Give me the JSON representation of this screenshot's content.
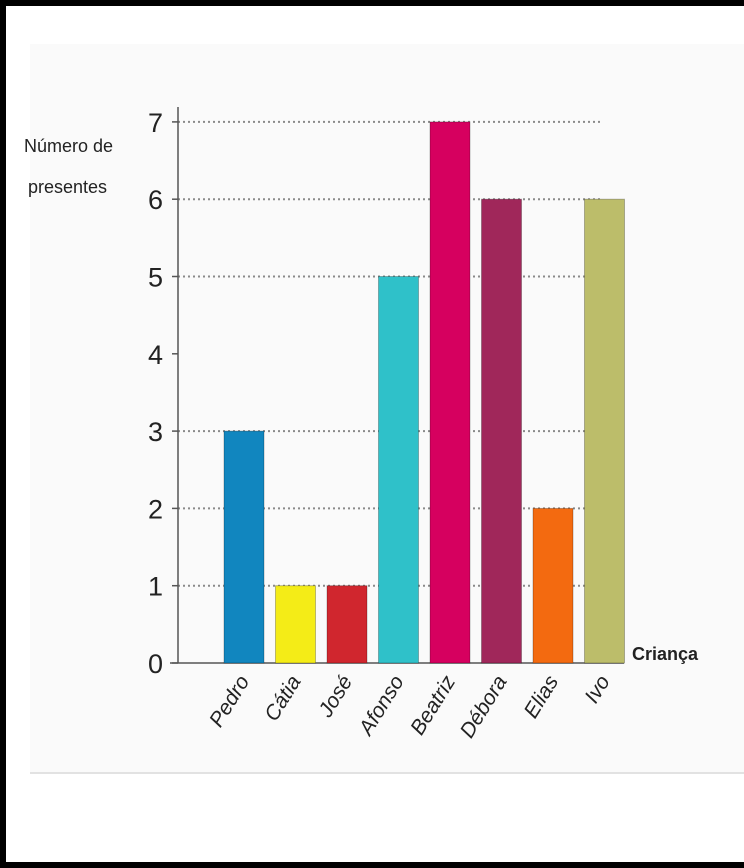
{
  "chart_data": {
    "type": "bar",
    "categories": [
      "Pedro",
      "Cátia",
      "José",
      "Afonso",
      "Beatriz",
      "Débora",
      "Elias",
      "Ivo"
    ],
    "values": [
      3,
      1,
      1,
      5,
      7,
      6,
      2,
      6
    ],
    "colors": [
      "#1186bf",
      "#f4ec17",
      "#d0262e",
      "#2fc1c9",
      "#d6005f",
      "#a0275a",
      "#f36a10",
      "#bcbd6a"
    ],
    "ylabel": [
      "Número de",
      "presentes"
    ],
    "xlabel": "Criança",
    "yticks": [
      "0",
      "1",
      "2",
      "3",
      "4",
      "5",
      "6",
      "7"
    ],
    "ylim": [
      0,
      7
    ],
    "grid": "dotted lines at bar tops"
  }
}
